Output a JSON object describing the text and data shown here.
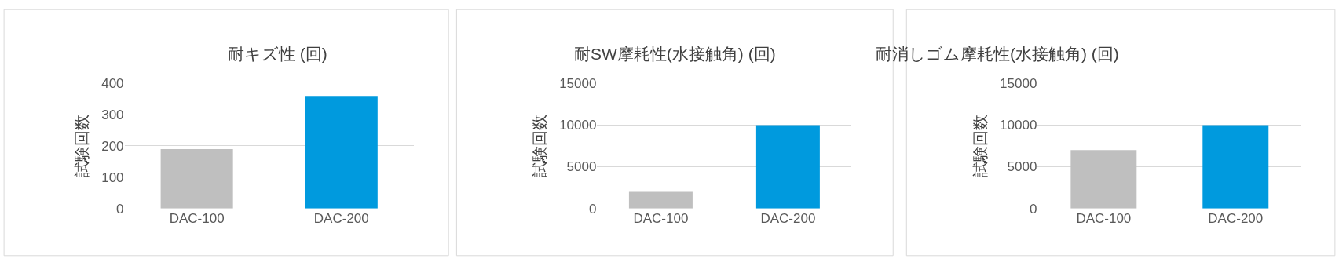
{
  "chart_data": [
    {
      "type": "bar",
      "title": "耐キズ性 (回)",
      "ylabel": "試験回数",
      "categories": [
        "DAC-100",
        "DAC-200"
      ],
      "values": [
        190,
        360
      ],
      "colors": [
        "#bfbfbf",
        "#009ade"
      ],
      "ylim": [
        0,
        400
      ],
      "yticks": [
        0,
        100,
        200,
        300,
        400
      ],
      "grid": "y"
    },
    {
      "type": "bar",
      "title": "耐SW摩耗性(水接触角) (回)",
      "ylabel": "試験回数",
      "categories": [
        "DAC-100",
        "DAC-200"
      ],
      "values": [
        2000,
        10000
      ],
      "colors": [
        "#bfbfbf",
        "#009ade"
      ],
      "ylim": [
        0,
        15000
      ],
      "yticks": [
        0,
        5000,
        10000,
        15000
      ],
      "grid": "y"
    },
    {
      "type": "bar",
      "title": "耐消しゴム摩耗性(水接触角) (回)",
      "ylabel": "試験回数",
      "categories": [
        "DAC-100",
        "DAC-200"
      ],
      "values": [
        7000,
        10000
      ],
      "colors": [
        "#bfbfbf",
        "#009ade"
      ],
      "ylim": [
        0,
        15000
      ],
      "yticks": [
        0,
        5000,
        10000,
        15000
      ],
      "grid": "y"
    }
  ]
}
